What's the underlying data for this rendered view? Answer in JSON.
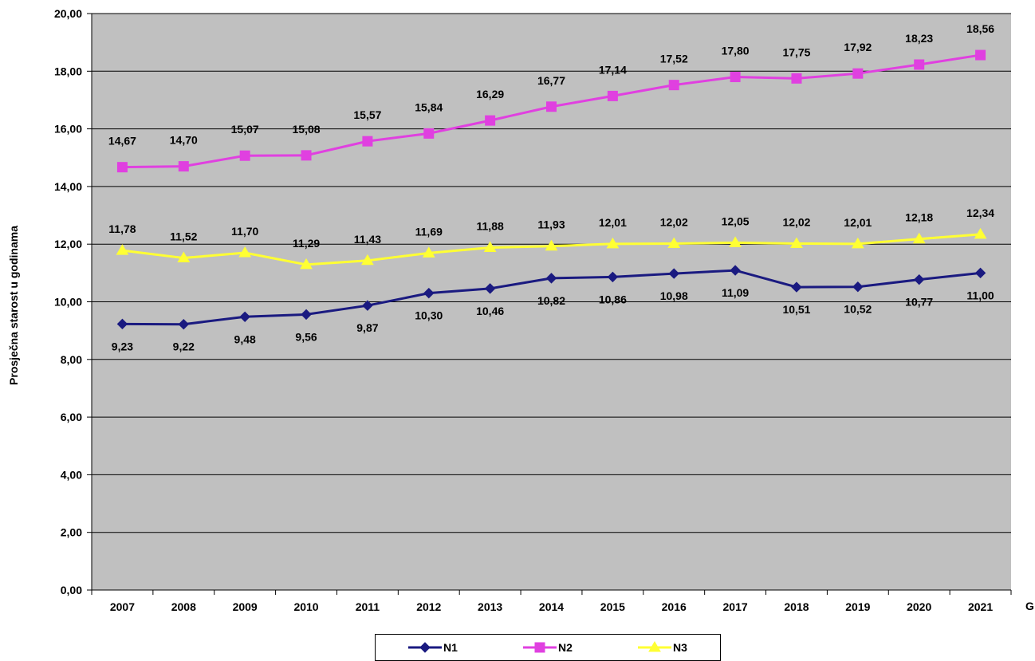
{
  "chart_data": {
    "type": "line",
    "categories": [
      "2007",
      "2008",
      "2009",
      "2010",
      "2011",
      "2012",
      "2013",
      "2014",
      "2015",
      "2016",
      "2017",
      "2018",
      "2019",
      "2020",
      "2021"
    ],
    "series": [
      {
        "name": "N1",
        "color": "#1a1a80",
        "marker": "diamond",
        "values": [
          9.23,
          9.22,
          9.48,
          9.56,
          9.87,
          10.3,
          10.46,
          10.82,
          10.86,
          10.98,
          11.09,
          10.51,
          10.52,
          10.77,
          11.0
        ],
        "labels": [
          "9,23",
          "9,22",
          "9,48",
          "9,56",
          "9,87",
          "10,30",
          "10,46",
          "10,82",
          "10,86",
          "10,98",
          "11,09",
          "10,51",
          "10,52",
          "10,77",
          "11,00"
        ]
      },
      {
        "name": "N2",
        "color": "#e040e0",
        "marker": "square",
        "values": [
          14.67,
          14.7,
          15.07,
          15.08,
          15.57,
          15.84,
          16.29,
          16.77,
          17.14,
          17.52,
          17.8,
          17.75,
          17.92,
          18.23,
          18.56
        ],
        "labels": [
          "14,67",
          "14,70",
          "15,07",
          "15,08",
          "15,57",
          "15,84",
          "16,29",
          "16,77",
          "17,14",
          "17,52",
          "17,80",
          "17,75",
          "17,92",
          "18,23",
          "18,56"
        ]
      },
      {
        "name": "N3",
        "color": "#ffff33",
        "marker": "triangle",
        "values": [
          11.78,
          11.52,
          11.7,
          11.29,
          11.43,
          11.69,
          11.88,
          11.93,
          12.01,
          12.02,
          12.05,
          12.02,
          12.01,
          12.18,
          12.34
        ],
        "labels": [
          "11,78",
          "11,52",
          "11,70",
          "11,29",
          "11,43",
          "11,69",
          "11,88",
          "11,93",
          "12,01",
          "12,02",
          "12,05",
          "12,02",
          "12,01",
          "12,18",
          "12,34"
        ]
      }
    ],
    "yticks": [
      "0,00",
      "2,00",
      "4,00",
      "6,00",
      "8,00",
      "10,00",
      "12,00",
      "14,00",
      "16,00",
      "18,00",
      "20,00"
    ],
    "ylim": [
      0,
      20
    ],
    "ylabel": "Prosječna starost u godinama",
    "xlabel_visible": "G",
    "plot_background": "#c0c0c0",
    "grid": true,
    "legend_position": "bottom"
  }
}
